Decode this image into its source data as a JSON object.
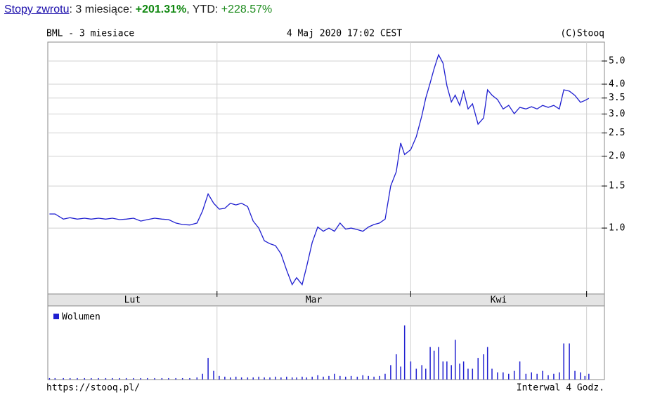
{
  "header": {
    "parts": [
      "Stopy zwrotu",
      ": 3 miesiące: ",
      "+201.31%",
      ", YTD: ",
      "+228.57%"
    ]
  },
  "chart_data": {
    "type": "line",
    "title": "BML - 3 miesiace",
    "subtitle": "4 Maj 2020 17:02 CEST",
    "credit": "(C)Stooq",
    "source": "https://stooq.pl/",
    "interval": "Interwal 4 Godz.",
    "log_scale": true,
    "grid": true,
    "color": "#1f1fd0",
    "xlim": [
      0,
      100
    ],
    "xticks": [
      30.4,
      65.2,
      96.8
    ],
    "x_categories": [
      "Lut",
      "Mar",
      "Kwi"
    ],
    "ylim": [
      0.53,
      6.0
    ],
    "yticks": [
      {
        "value": 1,
        "label": "1.0"
      },
      1.5,
      {
        "value": 2,
        "label": "2.0"
      },
      2.5,
      {
        "value": 3,
        "label": "3.0"
      },
      3.5,
      {
        "value": 4,
        "label": "4.0"
      },
      {
        "value": 5,
        "label": "5.0"
      }
    ],
    "x": [
      0.3,
      1.3,
      2.8,
      4.0,
      5.3,
      6.6,
      7.8,
      9.1,
      10.4,
      11.6,
      12.9,
      14.1,
      15.4,
      16.7,
      17.9,
      19.2,
      20.5,
      21.7,
      23.0,
      24.2,
      25.5,
      26.8,
      27.8,
      28.8,
      29.8,
      30.8,
      31.8,
      32.8,
      33.8,
      34.8,
      35.9,
      36.9,
      37.9,
      38.9,
      39.9,
      40.9,
      41.9,
      42.9,
      43.9,
      44.7,
      45.7,
      46.5,
      47.5,
      48.5,
      49.5,
      50.5,
      51.5,
      52.5,
      53.5,
      54.5,
      55.6,
      56.6,
      57.6,
      58.6,
      59.6,
      60.6,
      61.6,
      62.6,
      63.4,
      64.1,
      65.2,
      66.2,
      67.2,
      67.9,
      68.7,
      69.4,
      70.2,
      71.0,
      71.7,
      72.5,
      73.2,
      74.0,
      74.7,
      75.5,
      76.3,
      77.3,
      78.3,
      79.0,
      79.8,
      80.8,
      81.8,
      82.8,
      83.8,
      84.8,
      85.9,
      86.9,
      87.9,
      88.9,
      89.9,
      90.9,
      91.9,
      92.7,
      93.7,
      94.7,
      95.7,
      96.5,
      97.2
    ],
    "values": [
      1.145,
      1.145,
      1.09,
      1.105,
      1.09,
      1.1,
      1.09,
      1.1,
      1.09,
      1.1,
      1.085,
      1.09,
      1.1,
      1.07,
      1.085,
      1.1,
      1.09,
      1.085,
      1.05,
      1.035,
      1.03,
      1.05,
      1.18,
      1.39,
      1.27,
      1.2,
      1.21,
      1.27,
      1.25,
      1.27,
      1.23,
      1.07,
      1.0,
      0.885,
      0.86,
      0.845,
      0.78,
      0.667,
      0.58,
      0.62,
      0.58,
      0.69,
      0.87,
      1.01,
      0.97,
      1.0,
      0.97,
      1.05,
      0.99,
      1.0,
      0.985,
      0.97,
      1.01,
      1.035,
      1.05,
      1.09,
      1.5,
      1.72,
      2.27,
      2.03,
      2.13,
      2.41,
      2.95,
      3.5,
      4.05,
      4.64,
      5.31,
      4.9,
      3.94,
      3.37,
      3.6,
      3.26,
      3.74,
      3.15,
      3.31,
      2.72,
      2.89,
      3.79,
      3.6,
      3.45,
      3.15,
      3.26,
      3.01,
      3.2,
      3.15,
      3.22,
      3.15,
      3.26,
      3.2,
      3.26,
      3.15,
      3.79,
      3.74,
      3.59,
      3.36,
      3.42,
      3.49
    ],
    "volume": {
      "name": "Wolumen",
      "color": "#1f1fd0",
      "ylim": [
        0,
        100
      ],
      "values": [
        2,
        2,
        2,
        2,
        2,
        2,
        2,
        2,
        2,
        2,
        2,
        2,
        2,
        2,
        2,
        2,
        2,
        2,
        2,
        2,
        2,
        3,
        8,
        30,
        12,
        5,
        4,
        3,
        4,
        3,
        3,
        3,
        4,
        3,
        3,
        4,
        3,
        4,
        3,
        3,
        4,
        3,
        4,
        6,
        4,
        5,
        8,
        5,
        4,
        5,
        4,
        6,
        5,
        4,
        5,
        8,
        20,
        35,
        18,
        75,
        25,
        15,
        20,
        15,
        45,
        40,
        45,
        25,
        25,
        20,
        55,
        22,
        25,
        15,
        15,
        30,
        35,
        45,
        15,
        10,
        10,
        8,
        12,
        25,
        8,
        10,
        8,
        12,
        6,
        8,
        10,
        50,
        50,
        12,
        10,
        5,
        8
      ]
    }
  }
}
